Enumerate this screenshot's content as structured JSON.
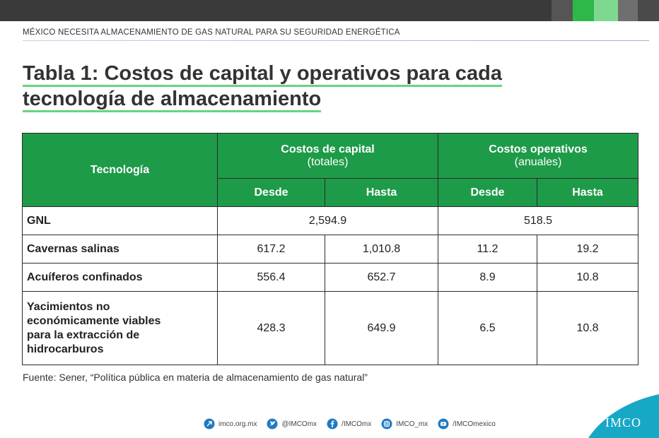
{
  "header": {
    "text": "MÉXICO NECESITA ALMACENAMIENTO DE GAS NATURAL  PARA SU SEGURIDAD ENERGÉTICA"
  },
  "title": {
    "line1": "Tabla 1: Costos de capital y operativos para cada",
    "line2": "tecnología de almacenamiento"
  },
  "table": {
    "col_tecnologia": "Tecnología",
    "group_capital": {
      "label": "Costos de capital",
      "sub": "(totales)"
    },
    "group_operativos": {
      "label": "Costos operativos",
      "sub": "(anuales)"
    },
    "desde": "Desde",
    "hasta": "Hasta",
    "rows": [
      {
        "name": "GNL",
        "capital": "2,594.9",
        "operativos": "518.5"
      },
      {
        "name": "Cavernas salinas",
        "cap_desde": "617.2",
        "cap_hasta": "1,010.8",
        "op_desde": "11.2",
        "op_hasta": "19.2"
      },
      {
        "name": "Acuíferos confinados",
        "cap_desde": "556.4",
        "cap_hasta": "652.7",
        "op_desde": "8.9",
        "op_hasta": "10.8"
      },
      {
        "name_lines": [
          "Yacimientos no",
          "económicamente viables",
          "para la extracción de",
          "hidrocarburos"
        ],
        "cap_desde": "428.3",
        "cap_hasta": "649.9",
        "op_desde": "6.5",
        "op_hasta": "10.8"
      }
    ]
  },
  "source": "Fuente: Sener, “Política pública en materia de almacenamiento de gas natural”",
  "footer": {
    "items": [
      {
        "icon": "web-icon",
        "label": "imco.org.mx"
      },
      {
        "icon": "twitter-icon",
        "label": "@IMCOmx"
      },
      {
        "icon": "facebook-icon",
        "label": "/IMCOmx"
      },
      {
        "icon": "instagram-icon",
        "label": "IMCO_mx"
      },
      {
        "icon": "youtube-icon",
        "label": "/IMCOmexico"
      }
    ],
    "logo": "IMCO"
  },
  "colors": {
    "green_header": "#1e9b48",
    "accent_light_green": "#69d27f",
    "icon_blue": "#1f7ac2",
    "logo_teal": "#17a8c6"
  }
}
